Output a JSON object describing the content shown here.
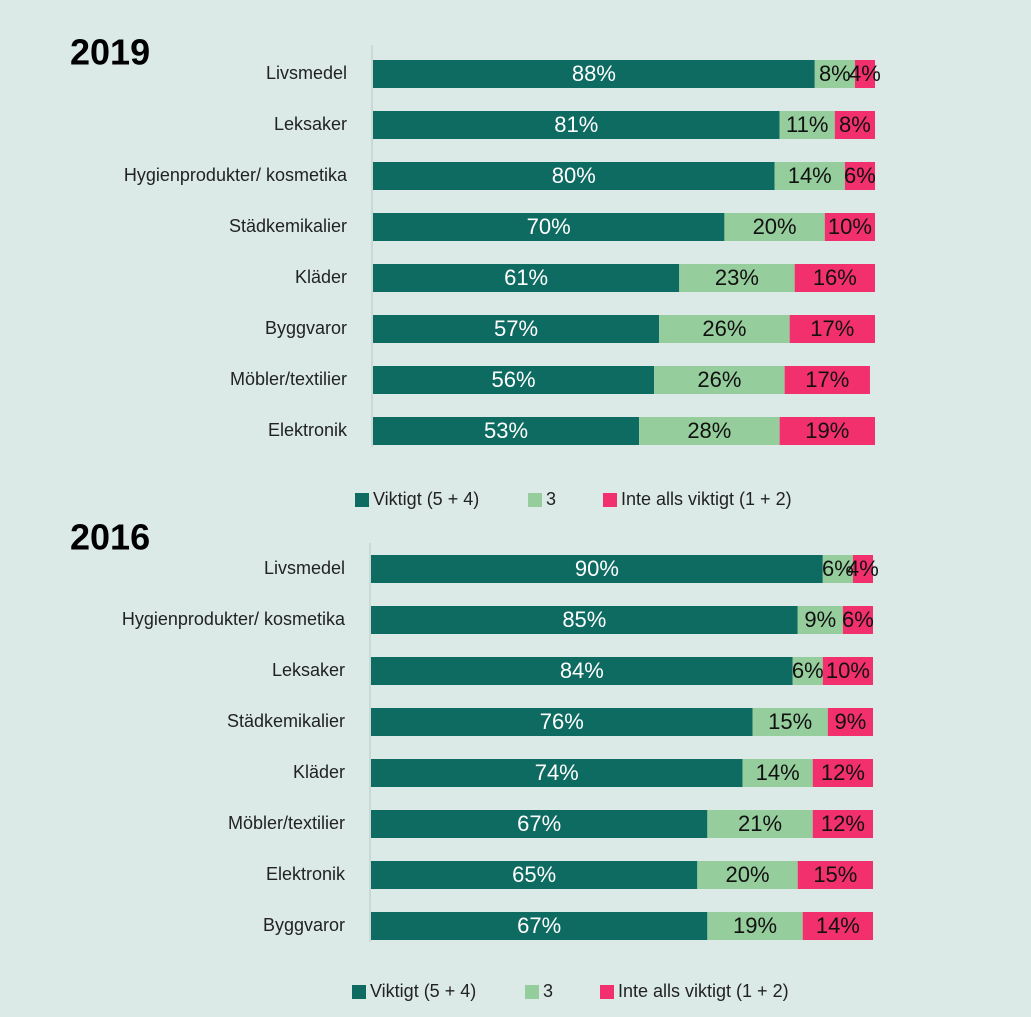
{
  "chart_data": [
    {
      "type": "bar",
      "orientation": "horizontal",
      "stacked": true,
      "title": "2019",
      "categories": [
        "Livsmedel",
        "Leksaker",
        "Hygienprodukter/ kosmetika",
        "Städkemikalier",
        "Kläder",
        "Byggvaror",
        "Möbler/textilier",
        "Elektronik"
      ],
      "xlim": [
        0,
        100
      ],
      "series": [
        {
          "name": "Viktigt (5 + 4)",
          "color": "#0e6b61",
          "values": [
            88,
            81,
            80,
            70,
            61,
            57,
            56,
            53
          ],
          "value_labels": [
            "88%",
            "81%",
            "80%",
            "70%",
            "61%",
            "57%",
            "56%",
            "53%"
          ]
        },
        {
          "name": "3",
          "color": "#96cd9d",
          "values": [
            8,
            11,
            14,
            20,
            23,
            26,
            26,
            28
          ],
          "value_labels": [
            "8%",
            "11%",
            "14%",
            "20%",
            "23%",
            "26%",
            "26%",
            "28%"
          ]
        },
        {
          "name": "Inte alls viktigt (1 + 2)",
          "color": "#f2306e",
          "values": [
            4,
            8,
            6,
            10,
            16,
            17,
            17,
            19
          ],
          "value_labels": [
            "4%",
            "8%",
            "6%",
            "10%",
            "16%",
            "17%",
            "17%",
            "19%"
          ]
        }
      ],
      "legend": "bottom"
    },
    {
      "type": "bar",
      "orientation": "horizontal",
      "stacked": true,
      "title": "2016",
      "categories": [
        "Livsmedel",
        "Hygienprodukter/ kosmetika",
        "Leksaker",
        "Städkemikalier",
        "Kläder",
        "Möbler/textilier",
        "Elektronik",
        "Byggvaror"
      ],
      "xlim": [
        0,
        100
      ],
      "series": [
        {
          "name": "Viktigt (5 + 4)",
          "color": "#0e6b61",
          "values": [
            90,
            85,
            84,
            76,
            74,
            67,
            65,
            67
          ],
          "value_labels": [
            "90%",
            "85%",
            "84%",
            "76%",
            "74%",
            "67%",
            "65%",
            "67%"
          ]
        },
        {
          "name": "3",
          "color": "#96cd9d",
          "values": [
            6,
            9,
            6,
            15,
            14,
            21,
            20,
            19
          ],
          "value_labels": [
            "6%",
            "9%",
            "6%",
            "15%",
            "14%",
            "21%",
            "20%",
            "19%"
          ]
        },
        {
          "name": "Inte alls viktigt (1 + 2)",
          "color": "#f2306e",
          "values": [
            4,
            6,
            10,
            9,
            12,
            12,
            15,
            14
          ],
          "value_labels": [
            "4%",
            "6%",
            "10%",
            "9%",
            "12%",
            "12%",
            "15%",
            "14%"
          ]
        }
      ],
      "legend": "bottom"
    }
  ]
}
